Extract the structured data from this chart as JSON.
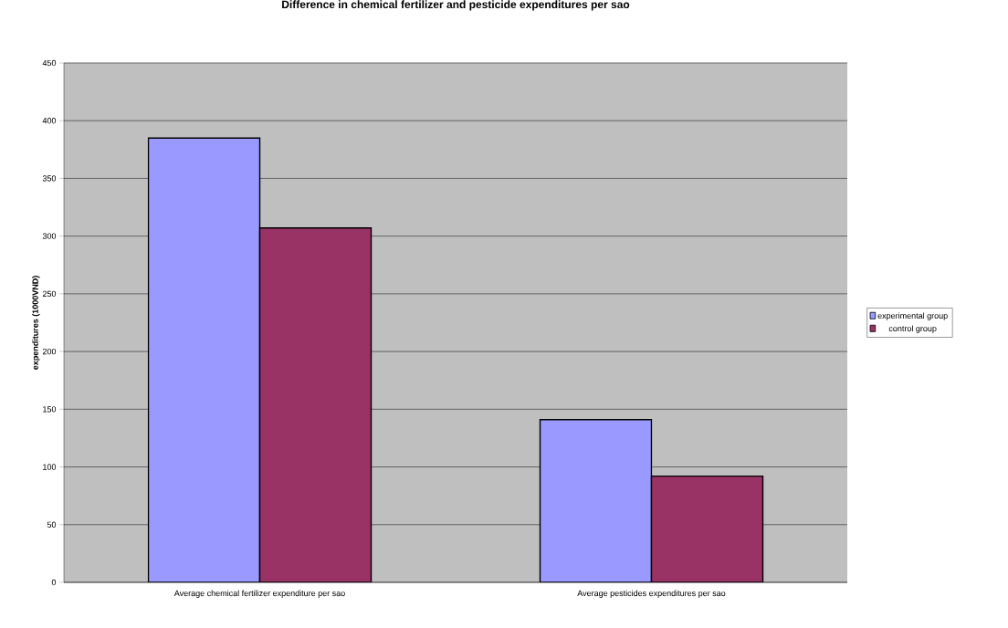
{
  "chart_data": {
    "type": "bar",
    "title": "Difference in chemical fertilizer and pesticide expenditures per sao",
    "ylabel": "expenditures (1000VND)",
    "categories": [
      "Average chemical fertilizer expenditure per sao",
      "Average pesticides expenditures per sao"
    ],
    "series": [
      {
        "name": "experimental group",
        "color": "#9999ff",
        "values": [
          385,
          141
        ]
      },
      {
        "name": "control group",
        "color": "#993366",
        "values": [
          307,
          92
        ]
      }
    ],
    "ylim": [
      0,
      450
    ],
    "yticks": [
      0,
      50,
      100,
      150,
      200,
      250,
      300,
      350,
      400,
      450
    ],
    "grid": "y",
    "legend": "right"
  }
}
